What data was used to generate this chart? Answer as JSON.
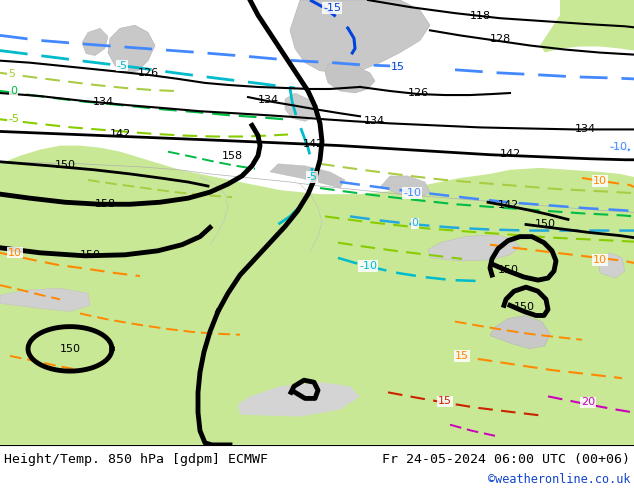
{
  "title_left": "Height/Temp. 850 hPa [gdpm] ECMWF",
  "title_right": "Fr 24-05-2024 06:00 UTC (00+06)",
  "credit": "©weatheronline.co.uk",
  "footer_bg": "#ffffff",
  "map_bg_grey": "#d4d4d4",
  "map_bg_green": "#c8e896",
  "map_sea_grey": "#d0d0d0",
  "figwidth": 6.34,
  "figheight": 4.9,
  "dpi": 100,
  "blue1": "#4488ff",
  "blue2": "#0044dd",
  "cyan1": "#00bbcc",
  "cyan2": "#22aadd",
  "green1": "#88cc00",
  "green2": "#aacc44",
  "orange1": "#ff8800",
  "red1": "#cc2200",
  "pink1": "#cc00bb"
}
